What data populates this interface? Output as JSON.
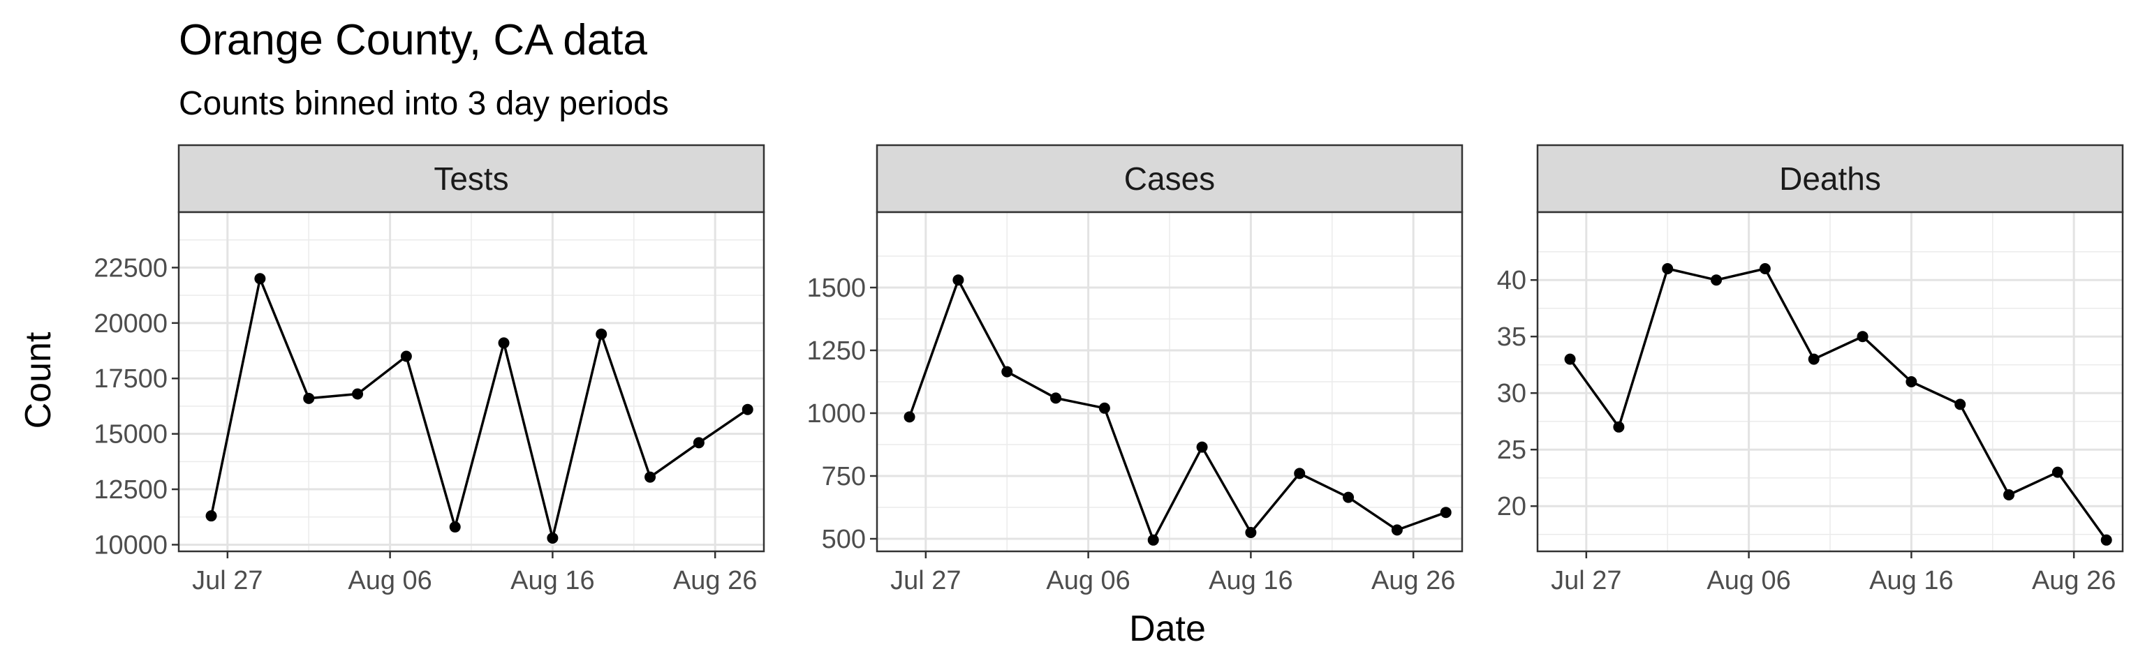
{
  "chart_data": {
    "type": "line",
    "title": "Orange County, CA data",
    "subtitle": "Counts binned into 3 day periods",
    "xlabel": "Date",
    "ylabel": "Count",
    "x": [
      "2020-07-26",
      "2020-07-29",
      "2020-08-01",
      "2020-08-04",
      "2020-08-07",
      "2020-08-10",
      "2020-08-13",
      "2020-08-16",
      "2020-08-19",
      "2020-08-22",
      "2020-08-25",
      "2020-08-28"
    ],
    "x_ticks": [
      "Jul 27",
      "Aug 06",
      "Aug 16",
      "Aug 26"
    ],
    "x_tick_dates": [
      "2020-07-27",
      "2020-08-06",
      "2020-08-16",
      "2020-08-26"
    ],
    "xlim": [
      "2020-07-24",
      "2020-08-29"
    ],
    "grid": true,
    "panels": [
      {
        "name": "Tests",
        "values": [
          11300,
          22000,
          16600,
          16800,
          18500,
          10800,
          19100,
          10300,
          19500,
          13050,
          14600,
          16100
        ],
        "ylim": [
          9700,
          25000
        ],
        "yticks": [
          10000,
          12500,
          15000,
          17500,
          20000,
          22500
        ],
        "ytick_labels": [
          "10000",
          "12500",
          "15000",
          "17500",
          "20000",
          "22500"
        ]
      },
      {
        "name": "Cases",
        "values": [
          985,
          1530,
          1165,
          1060,
          1020,
          495,
          865,
          525,
          760,
          665,
          535,
          605
        ],
        "ylim": [
          450,
          1800
        ],
        "yticks": [
          500,
          750,
          1000,
          1250,
          1500
        ],
        "ytick_labels": [
          "500",
          "750",
          "1000",
          "1250",
          "1500"
        ]
      },
      {
        "name": "Deaths",
        "values": [
          33,
          27,
          41,
          40,
          41,
          33,
          35,
          31,
          29,
          21,
          23,
          17
        ],
        "ylim": [
          16,
          46
        ],
        "yticks": [
          20,
          25,
          30,
          35,
          40
        ],
        "ytick_labels": [
          "20",
          "25",
          "30",
          "35",
          "40"
        ]
      }
    ]
  }
}
